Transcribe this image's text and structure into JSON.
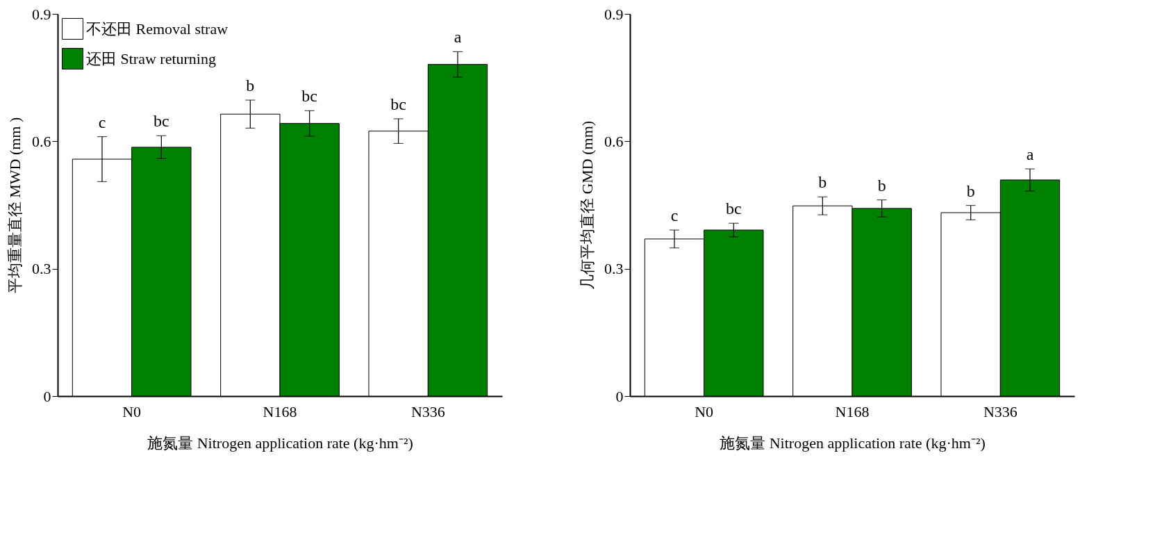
{
  "chart_data": [
    {
      "type": "bar",
      "ylabel": "平均重量直径 MWD (mm )",
      "xlabel": "施氮量 Nitrogen application rate (kg·hm⁻²)",
      "categories": [
        "N0",
        "N168",
        "N336"
      ],
      "ylim": [
        0,
        0.9
      ],
      "yticks": [
        0,
        0.3,
        0.6,
        0.9
      ],
      "grid": false,
      "legend": "top left",
      "series": [
        {
          "name": "不还田 Removal straw",
          "color": "#ffffff",
          "values": [
            0.558,
            0.664,
            0.624
          ],
          "errors": [
            0.053,
            0.033,
            0.029
          ],
          "value_labels": [
            "c",
            "b",
            "bc"
          ]
        },
        {
          "name": "还田 Straw returning",
          "color": "#008000",
          "values": [
            0.586,
            0.642,
            0.781
          ],
          "errors": [
            0.027,
            0.03,
            0.03
          ],
          "value_labels": [
            "bc",
            "bc",
            "a"
          ]
        }
      ]
    },
    {
      "type": "bar",
      "ylabel": "几何平均直径 GMD (mm)",
      "xlabel": "施氮量 Nitrogen application rate (kg·hm⁻²)",
      "categories": [
        "N0",
        "N168",
        "N336"
      ],
      "ylim": [
        0,
        0.9
      ],
      "yticks": [
        0,
        0.3,
        0.6,
        0.9
      ],
      "grid": false,
      "legend": false,
      "series": [
        {
          "color": "#ffffff",
          "values": [
            0.37,
            0.448,
            0.432
          ],
          "errors": [
            0.021,
            0.021,
            0.017
          ],
          "value_labels": [
            "c",
            "b",
            "b"
          ]
        },
        {
          "color": "#008000",
          "values": [
            0.391,
            0.442,
            0.509
          ],
          "errors": [
            0.016,
            0.02,
            0.026
          ],
          "value_labels": [
            "bc",
            "b",
            "a"
          ]
        }
      ]
    }
  ]
}
